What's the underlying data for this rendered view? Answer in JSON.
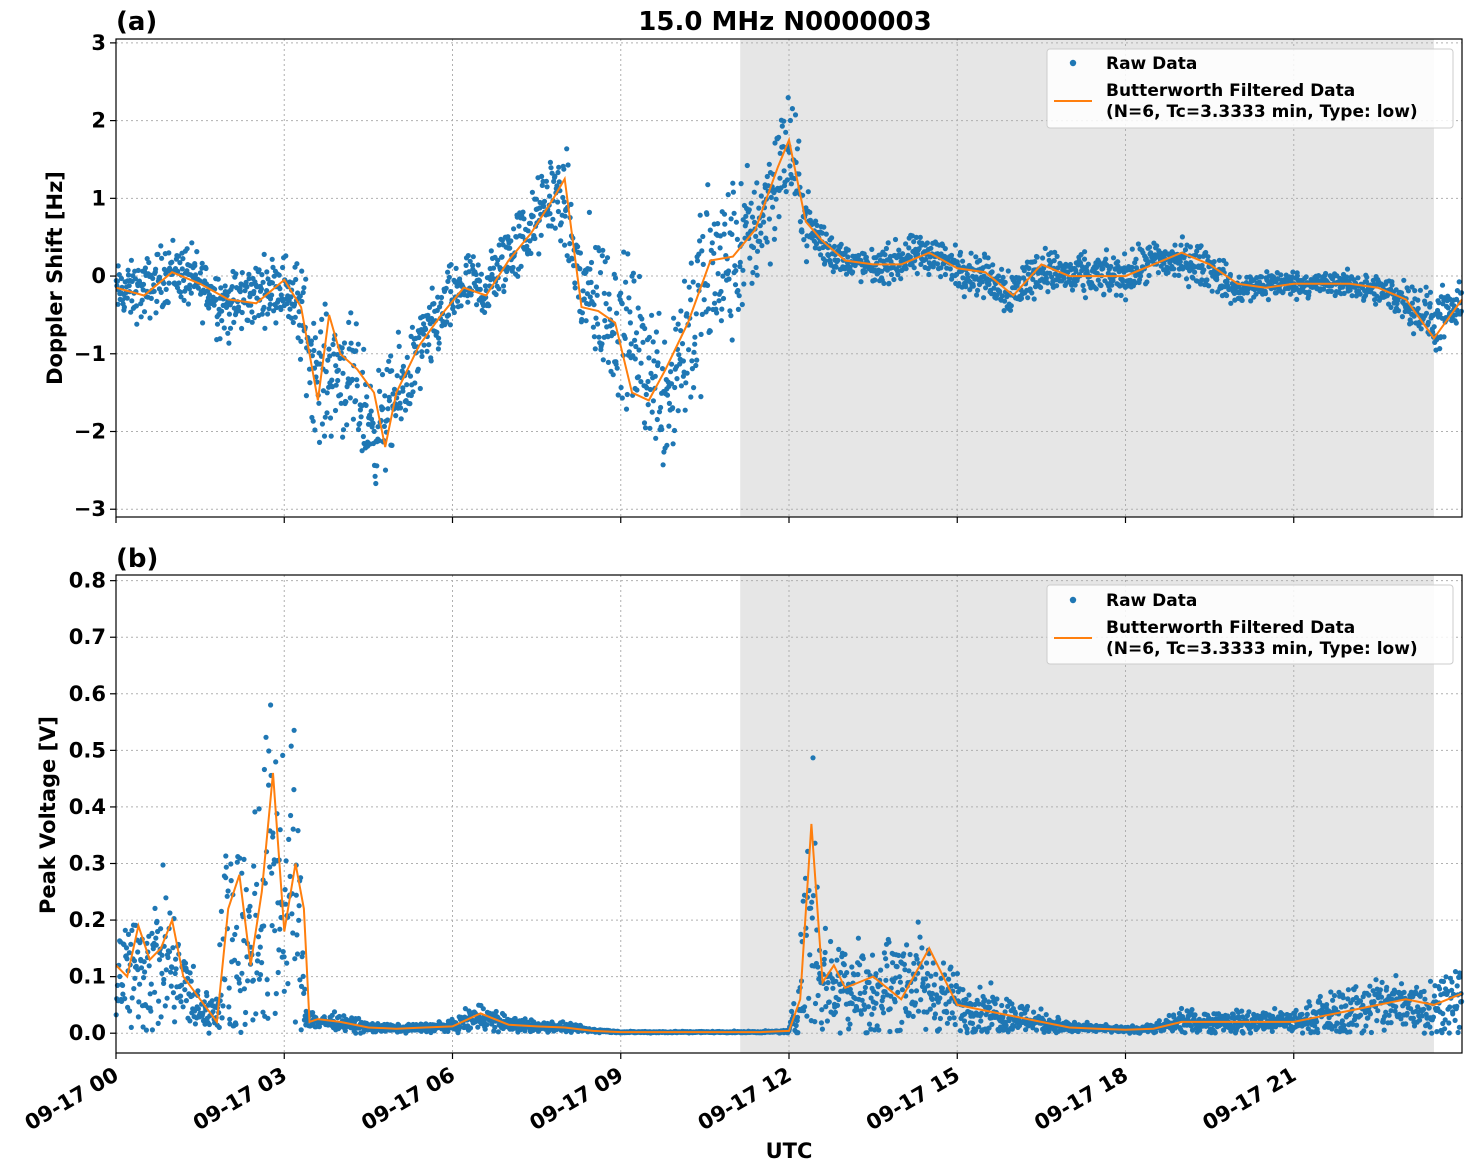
{
  "chart_data": [
    {
      "type": "scatter",
      "panel_label": "(a)",
      "title": "15.0 MHz N0000003",
      "ylabel": "Doppler Shift [Hz]",
      "xlabel": "",
      "xlim_hours": [
        0,
        24
      ],
      "ylim": [
        -3.1,
        3.05
      ],
      "yticks": [
        -3,
        -2,
        -1,
        0,
        1,
        2,
        3
      ],
      "ytick_labels": [
        "−3",
        "−2",
        "−1",
        "0",
        "1",
        "2",
        "3"
      ],
      "shaded_interval_hours": [
        11.13,
        23.5
      ],
      "grid": true,
      "legend_position": "top-right",
      "series": [
        {
          "name": "Raw Data",
          "style": "points",
          "color": "#1f77b4",
          "x_hours": [
            0,
            0.5,
            1,
            1.5,
            2,
            2.5,
            3,
            3.3,
            3.6,
            4,
            4.3,
            4.6,
            5,
            5.4,
            5.8,
            6.2,
            6.6,
            7,
            7.4,
            7.8,
            8,
            8.3,
            8.6,
            8.9,
            9.2,
            9.5,
            9.8,
            10.2,
            10.6,
            11,
            11.4,
            11.8,
            12,
            12.3,
            12.6,
            13,
            13.5,
            14,
            14.5,
            15,
            15.5,
            16,
            16.5,
            17,
            17.5,
            18,
            18.5,
            19,
            19.5,
            20,
            20.5,
            21,
            21.5,
            22,
            22.5,
            23,
            23.5,
            24
          ],
          "y_center": [
            -0.2,
            -0.2,
            0.1,
            -0.1,
            -0.4,
            -0.2,
            -0.1,
            -0.5,
            -1.3,
            -1.2,
            -1.5,
            -2.0,
            -1.6,
            -1.0,
            -0.5,
            -0.1,
            -0.2,
            0.3,
            0.6,
            1.1,
            0.9,
            -0.2,
            -0.3,
            -0.6,
            -0.8,
            -1.2,
            -1.5,
            -0.7,
            0.0,
            0.2,
            0.6,
            1.3,
            1.7,
            0.7,
            0.4,
            0.2,
            0.1,
            0.2,
            0.3,
            0.1,
            0.0,
            -0.2,
            0.1,
            0.0,
            0.0,
            0.0,
            0.2,
            0.2,
            0.1,
            -0.2,
            -0.1,
            -0.1,
            -0.1,
            -0.1,
            -0.2,
            -0.3,
            -0.6,
            -0.4
          ],
          "y_spread": [
            0.25,
            0.3,
            0.3,
            0.3,
            0.35,
            0.3,
            0.3,
            0.5,
            0.6,
            0.6,
            0.6,
            0.5,
            0.5,
            0.4,
            0.35,
            0.3,
            0.3,
            0.35,
            0.35,
            0.4,
            0.5,
            0.6,
            0.7,
            0.7,
            0.7,
            0.7,
            0.8,
            0.9,
            0.9,
            0.8,
            0.6,
            0.6,
            0.6,
            0.3,
            0.25,
            0.15,
            0.15,
            0.2,
            0.2,
            0.2,
            0.2,
            0.25,
            0.2,
            0.2,
            0.2,
            0.2,
            0.2,
            0.2,
            0.2,
            0.15,
            0.15,
            0.12,
            0.12,
            0.12,
            0.15,
            0.2,
            0.3,
            0.2
          ]
        },
        {
          "name": "Butterworth Filtered Data\n(N=6, Tc=3.3333 min, Type: low)",
          "style": "line",
          "color": "#ff7f0e",
          "x_hours": [
            0,
            0.5,
            1,
            1.5,
            2,
            2.5,
            3,
            3.3,
            3.6,
            3.8,
            4,
            4.3,
            4.6,
            4.8,
            5,
            5.4,
            5.8,
            6.2,
            6.6,
            7,
            7.4,
            7.8,
            8,
            8.3,
            8.6,
            8.9,
            9.2,
            9.5,
            9.8,
            10.2,
            10.6,
            11,
            11.4,
            11.8,
            12,
            12.3,
            12.6,
            13,
            13.5,
            14,
            14.5,
            15,
            15.5,
            16,
            16.5,
            17,
            17.5,
            18,
            18.5,
            19,
            19.5,
            20,
            20.5,
            21,
            21.5,
            22,
            22.5,
            23,
            23.5,
            24
          ],
          "y": [
            -0.15,
            -0.25,
            0.05,
            -0.1,
            -0.3,
            -0.35,
            -0.05,
            -0.4,
            -1.6,
            -0.5,
            -1.0,
            -1.2,
            -1.5,
            -2.2,
            -1.5,
            -0.9,
            -0.5,
            -0.15,
            -0.25,
            0.2,
            0.55,
            1.0,
            1.25,
            -0.4,
            -0.45,
            -0.6,
            -1.5,
            -1.6,
            -1.2,
            -0.6,
            0.2,
            0.25,
            0.6,
            1.4,
            1.75,
            0.7,
            0.45,
            0.2,
            0.15,
            0.15,
            0.3,
            0.1,
            0.05,
            -0.25,
            0.15,
            0.0,
            0.0,
            0.0,
            0.15,
            0.3,
            0.15,
            -0.1,
            -0.15,
            -0.1,
            -0.1,
            -0.1,
            -0.15,
            -0.3,
            -0.8,
            -0.3
          ]
        }
      ]
    },
    {
      "type": "scatter",
      "panel_label": "(b)",
      "title": "",
      "ylabel": "Peak Voltage [V]",
      "xlabel": "UTC",
      "xlim_hours": [
        0,
        24
      ],
      "ylim": [
        -0.035,
        0.81
      ],
      "yticks": [
        0.0,
        0.1,
        0.2,
        0.3,
        0.4,
        0.5,
        0.6,
        0.7,
        0.8
      ],
      "ytick_labels": [
        "0.0",
        "0.1",
        "0.2",
        "0.3",
        "0.4",
        "0.5",
        "0.6",
        "0.7",
        "0.8"
      ],
      "xtick_hours": [
        0,
        3,
        6,
        9,
        12,
        15,
        18,
        21
      ],
      "xtick_labels": [
        "09-17 00",
        "09-17 03",
        "09-17 06",
        "09-17 09",
        "09-17 12",
        "09-17 15",
        "09-17 18",
        "09-17 21"
      ],
      "shaded_interval_hours": [
        11.13,
        23.5
      ],
      "grid": true,
      "legend_position": "top-right",
      "series": [
        {
          "name": "Raw Data",
          "style": "points",
          "color": "#1f77b4",
          "x_hours": [
            0,
            0.3,
            0.6,
            0.9,
            1.2,
            1.5,
            1.8,
            2.0,
            2.3,
            2.6,
            2.8,
            3.0,
            3.2,
            3.4,
            3.6,
            4.0,
            4.5,
            5.0,
            5.5,
            6.0,
            6.5,
            7.0,
            7.5,
            8.0,
            8.5,
            9.0,
            10.0,
            11.0,
            11.5,
            12.0,
            12.2,
            12.4,
            12.6,
            13.0,
            13.5,
            14.0,
            14.5,
            15.0,
            15.5,
            16.0,
            16.5,
            17.0,
            17.5,
            18.0,
            18.5,
            19.0,
            19.5,
            20.0,
            20.5,
            21.0,
            21.5,
            22.0,
            22.5,
            23.0,
            23.5,
            24.0
          ],
          "y_center": [
            0.12,
            0.1,
            0.12,
            0.13,
            0.08,
            0.04,
            0.04,
            0.18,
            0.15,
            0.2,
            0.32,
            0.2,
            0.25,
            0.03,
            0.02,
            0.02,
            0.01,
            0.008,
            0.01,
            0.012,
            0.03,
            0.015,
            0.012,
            0.01,
            0.005,
            0.002,
            0.002,
            0.002,
            0.002,
            0.003,
            0.08,
            0.25,
            0.09,
            0.09,
            0.07,
            0.1,
            0.08,
            0.05,
            0.04,
            0.03,
            0.02,
            0.01,
            0.008,
            0.006,
            0.008,
            0.02,
            0.02,
            0.02,
            0.02,
            0.02,
            0.03,
            0.04,
            0.05,
            0.05,
            0.05,
            0.06
          ],
          "y_spread": [
            0.08,
            0.08,
            0.1,
            0.1,
            0.06,
            0.03,
            0.03,
            0.18,
            0.15,
            0.2,
            0.25,
            0.15,
            0.2,
            0.015,
            0.012,
            0.01,
            0.008,
            0.005,
            0.006,
            0.008,
            0.02,
            0.01,
            0.008,
            0.006,
            0.003,
            0.001,
            0.001,
            0.001,
            0.001,
            0.002,
            0.06,
            0.2,
            0.07,
            0.07,
            0.06,
            0.08,
            0.06,
            0.04,
            0.03,
            0.025,
            0.015,
            0.008,
            0.005,
            0.004,
            0.006,
            0.015,
            0.015,
            0.015,
            0.015,
            0.015,
            0.025,
            0.035,
            0.04,
            0.04,
            0.04,
            0.05
          ]
        },
        {
          "name": "Butterworth Filtered Data\n(N=6, Tc=3.3333 min, Type: low)",
          "style": "line",
          "color": "#ff7f0e",
          "x_hours": [
            0,
            0.2,
            0.4,
            0.6,
            0.8,
            1.0,
            1.2,
            1.5,
            1.8,
            2.0,
            2.2,
            2.4,
            2.6,
            2.8,
            3.0,
            3.2,
            3.35,
            3.45,
            3.6,
            4.0,
            4.5,
            5.0,
            5.5,
            6.0,
            6.5,
            7.0,
            7.5,
            8.0,
            8.5,
            9.0,
            10.0,
            11.0,
            11.5,
            12.0,
            12.2,
            12.4,
            12.6,
            12.8,
            13.0,
            13.5,
            14.0,
            14.5,
            15.0,
            15.5,
            16.0,
            16.5,
            17.0,
            17.5,
            18.0,
            18.5,
            19.0,
            19.5,
            20.0,
            20.5,
            21.0,
            21.5,
            22.0,
            22.5,
            23.0,
            23.5,
            24.0
          ],
          "y": [
            0.12,
            0.1,
            0.19,
            0.13,
            0.15,
            0.2,
            0.1,
            0.06,
            0.02,
            0.22,
            0.28,
            0.12,
            0.25,
            0.46,
            0.18,
            0.3,
            0.22,
            0.02,
            0.025,
            0.02,
            0.01,
            0.008,
            0.01,
            0.012,
            0.035,
            0.015,
            0.012,
            0.01,
            0.004,
            0.002,
            0.002,
            0.002,
            0.002,
            0.004,
            0.06,
            0.37,
            0.09,
            0.12,
            0.08,
            0.1,
            0.06,
            0.15,
            0.05,
            0.04,
            0.03,
            0.02,
            0.01,
            0.008,
            0.006,
            0.008,
            0.02,
            0.02,
            0.02,
            0.02,
            0.02,
            0.03,
            0.04,
            0.05,
            0.06,
            0.05,
            0.07
          ]
        }
      ]
    }
  ]
}
